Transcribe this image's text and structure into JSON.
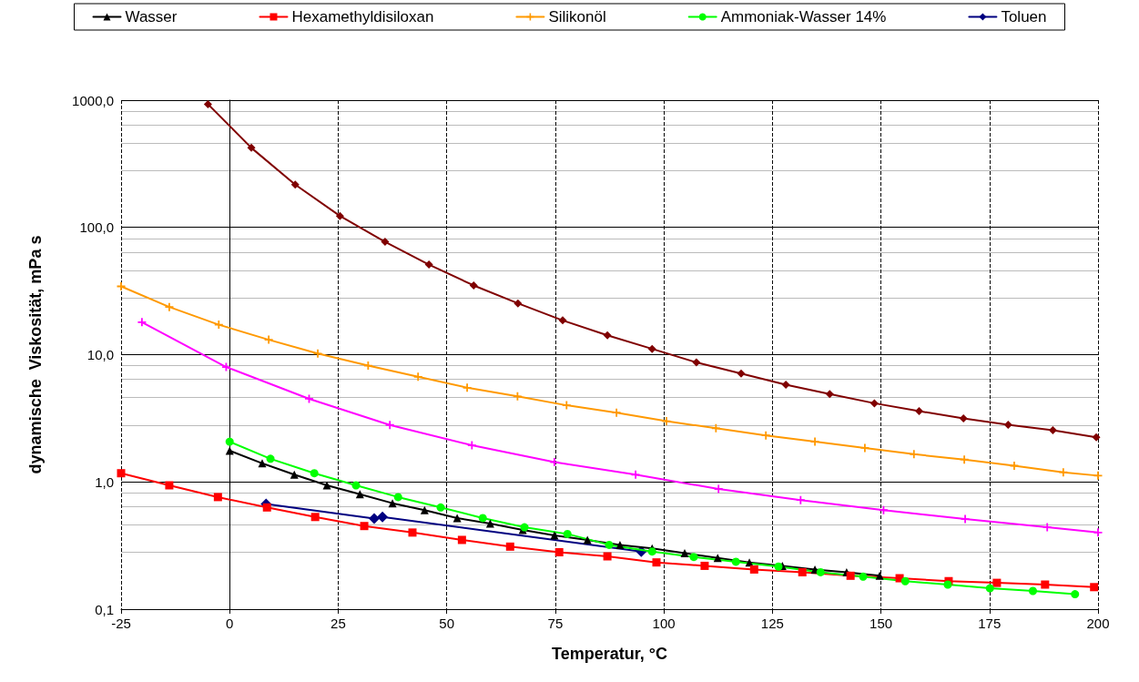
{
  "chart_data": {
    "type": "line",
    "xlabel": "Temperatur, °C",
    "ylabel": "dynamische  Viskosität, mPa s",
    "xlim": [
      -25,
      200
    ],
    "xticks": [
      -25,
      0,
      25,
      50,
      75,
      100,
      125,
      150,
      175,
      200
    ],
    "ylim": [
      0.1,
      1000
    ],
    "yticks": [
      {
        "value": 0.1,
        "label": "0,1"
      },
      {
        "value": 1,
        "label": "1,0"
      },
      {
        "value": 10,
        "label": "10,0"
      },
      {
        "value": 100,
        "label": "100,0"
      },
      {
        "value": 1000,
        "label": "1000,0"
      }
    ],
    "log": "y",
    "grid": true,
    "legend": "top",
    "line_style": "solid",
    "series": [
      {
        "name": "Wasser",
        "color": "#000000",
        "marker": "triangle",
        "x": [
          0,
          7.5,
          14.9,
          22.4,
          30,
          37.5,
          44.9,
          52.4,
          60,
          67.5,
          74.8,
          82.4,
          89.9,
          97.3,
          104.8,
          112.4,
          119.7,
          127.3,
          134.8,
          142.1,
          149.7
        ],
        "values": [
          1.76,
          1.4,
          1.14,
          0.94,
          0.8,
          0.68,
          0.6,
          0.52,
          0.47,
          0.42,
          0.38,
          0.35,
          0.32,
          0.3,
          0.275,
          0.253,
          0.233,
          0.219,
          0.205,
          0.195,
          0.183
        ]
      },
      {
        "name": "Hexamethyldisiloxan",
        "color": "#ff0000",
        "marker": "square",
        "x": [
          -25,
          -13.9,
          -2.7,
          8.6,
          19.7,
          31,
          42.1,
          53.5,
          64.6,
          75.9,
          87,
          98.3,
          109.4,
          120.8,
          131.9,
          143,
          154.3,
          165.6,
          176.7,
          187.8,
          199.1
        ],
        "values": [
          1.17,
          0.94,
          0.76,
          0.63,
          0.53,
          0.45,
          0.4,
          0.35,
          0.31,
          0.28,
          0.26,
          0.233,
          0.219,
          0.205,
          0.195,
          0.183,
          0.175,
          0.166,
          0.161,
          0.156,
          0.149
        ]
      },
      {
        "name": "Silikonöl",
        "color": "#ff9900",
        "marker": "cross",
        "x": [
          -25,
          -13.9,
          -2.5,
          9,
          20.3,
          31.9,
          43.4,
          54.7,
          66.3,
          77.6,
          89.1,
          100.6,
          112,
          123.5,
          134.8,
          146.3,
          157.6,
          169.2,
          180.7,
          192,
          200
        ],
        "values": [
          34.4,
          23.7,
          17.2,
          13.1,
          10.2,
          8.2,
          6.7,
          5.5,
          4.7,
          4.0,
          3.5,
          3.0,
          2.64,
          2.32,
          2.07,
          1.85,
          1.65,
          1.5,
          1.34,
          1.19,
          1.12
        ]
      },
      {
        "name": "Ammoniak-Wasser 14%",
        "color": "#00ff00",
        "marker": "circle",
        "x": [
          0,
          9.4,
          19.5,
          29.1,
          38.8,
          48.6,
          58.3,
          67.9,
          77.8,
          87.4,
          97.3,
          106.9,
          116.6,
          126.4,
          136.1,
          145.9,
          155.6,
          165.4,
          175.1,
          185,
          194.7
        ],
        "values": [
          2.07,
          1.52,
          1.17,
          0.94,
          0.76,
          0.63,
          0.52,
          0.44,
          0.39,
          0.32,
          0.284,
          0.257,
          0.236,
          0.216,
          0.195,
          0.18,
          0.166,
          0.156,
          0.146,
          0.139,
          0.131
        ]
      },
      {
        "name": "Toluen",
        "color": "#000080",
        "marker": "diamond",
        "x": [
          8.4,
          33.3,
          35.2,
          94.8
        ],
        "values": [
          0.67,
          0.515,
          0.53,
          0.284
        ]
      },
      {
        "color": "#800000",
        "marker": "diamond",
        "x": [
          -5,
          5,
          15.1,
          25.4,
          35.8,
          45.9,
          56.2,
          66.4,
          76.7,
          87,
          97.3,
          107.5,
          117.8,
          128.1,
          138.2,
          148.5,
          158.8,
          169,
          179.3,
          189.6,
          199.6
        ],
        "values": [
          930,
          422,
          217,
          123,
          77,
          51,
          35,
          25.3,
          18.6,
          14.2,
          11.1,
          8.7,
          7.1,
          5.8,
          4.9,
          4.15,
          3.6,
          3.15,
          2.81,
          2.55,
          2.24
        ]
      },
      {
        "color": "#ff00ff",
        "marker": "cross",
        "x": [
          -20.2,
          -0.8,
          18.3,
          36.9,
          55.8,
          74.8,
          93.5,
          112.6,
          131.5,
          150.6,
          169.4,
          188.3,
          200
        ],
        "values": [
          18.0,
          8.0,
          4.5,
          2.8,
          1.94,
          1.43,
          1.14,
          0.88,
          0.72,
          0.6,
          0.51,
          0.44,
          0.4
        ]
      }
    ]
  }
}
